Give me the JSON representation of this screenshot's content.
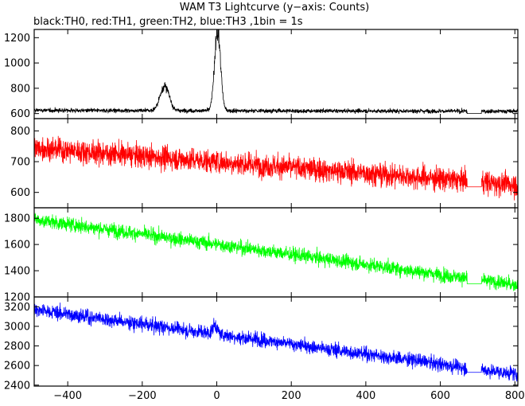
{
  "title_line": "WAM T3 Lightcurve (y−axis: Counts)",
  "subtitle_line": "black:TH0, red:TH1, green:TH2, blue:TH3 ,1bin = 1s",
  "chart_data": {
    "type": "line",
    "title": "WAM T3 Lightcurve (y−axis: Counts)",
    "subtitle": "black:TH0, red:TH1, green:TH2, blue:TH3 ,1bin = 1s",
    "x_range": [
      -490,
      808
    ],
    "x_ticks": [
      -400,
      -200,
      0,
      200,
      400,
      600,
      800
    ],
    "x_tick_labels": [
      "−400",
      "−200",
      "0",
      "200",
      "400",
      "600",
      "800"
    ],
    "gap": [
      672,
      710
    ],
    "panels": [
      {
        "series": "TH0",
        "color": "#000000",
        "ylim": [
          560,
          1265
        ],
        "yticks": [
          600,
          800,
          1000,
          1200
        ],
        "ytick_labels": [
          "600",
          "800",
          "1000",
          "1200"
        ],
        "baseline_start": 625,
        "baseline_end": 618,
        "noise": 14,
        "gap_level": 600,
        "features": [
          {
            "label": "bump",
            "center": -140,
            "peak_add": 195,
            "width": 12
          },
          {
            "label": "burst",
            "center": 2,
            "peak_add": 640,
            "width": 8
          }
        ]
      },
      {
        "series": "TH1",
        "color": "#ff0000",
        "ylim": [
          550,
          840
        ],
        "yticks": [
          600,
          700,
          800
        ],
        "ytick_labels": [
          "600",
          "700",
          "800"
        ],
        "baseline_start": 745,
        "baseline_end": 625,
        "noise": 32,
        "gap_level": 618,
        "features": []
      },
      {
        "series": "TH2",
        "color": "#00ff00",
        "ylim": [
          1200,
          1880
        ],
        "yticks": [
          1200,
          1400,
          1600,
          1800
        ],
        "ytick_labels": [
          "1200",
          "1400",
          "1600",
          "1800"
        ],
        "baseline_start": 1790,
        "baseline_end": 1290,
        "noise": 45,
        "gap_level": 1300,
        "features": []
      },
      {
        "series": "TH3",
        "color": "#0000ff",
        "ylim": [
          2390,
          3300
        ],
        "yticks": [
          2400,
          2600,
          2800,
          3000,
          3200
        ],
        "ytick_labels": [
          "2400",
          "2600",
          "2800",
          "3000",
          "3200"
        ],
        "baseline_start": 3170,
        "baseline_end": 2510,
        "noise": 60,
        "gap_level": 2530,
        "features": [
          {
            "label": "spike",
            "center": -5,
            "peak_add": 90,
            "width": 6
          }
        ]
      }
    ]
  }
}
